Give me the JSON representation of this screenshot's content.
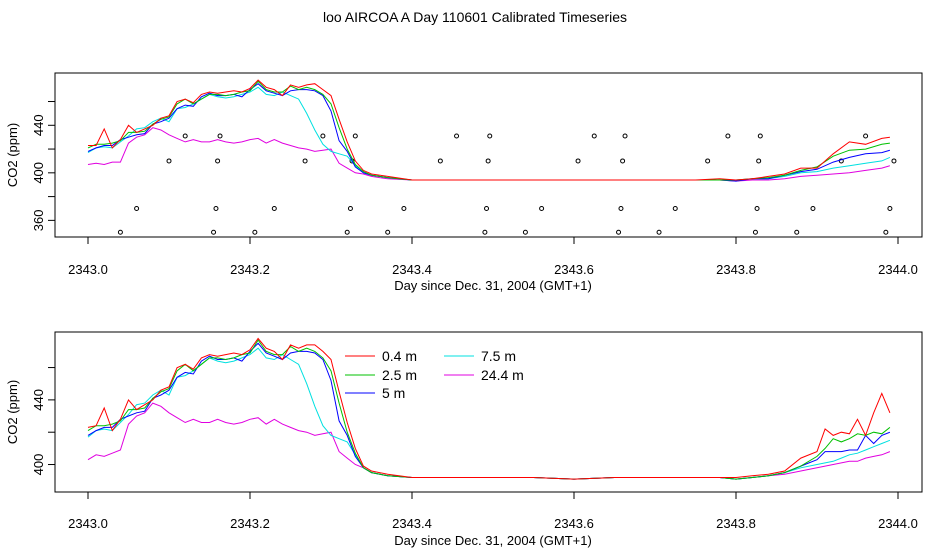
{
  "title": "loo AIRCOA A  Day 110601  Calibrated Timeseries",
  "colors": {
    "0.4 m": "#ff0000",
    "2.5 m": "#00c000",
    "5 m": "#0000ff",
    "7.5 m": "#00e0e0",
    "24.4 m": "#e000e0",
    "axis": "#000000",
    "background": "#ffffff"
  },
  "chart_data": [
    {
      "type": "line",
      "xlabel": "Day since Dec. 31, 2004 (GMT+1)",
      "ylabel": "CO2 (ppm)",
      "xlim": [
        2343.0,
        2344.0
      ],
      "ylim": [
        346,
        484
      ],
      "xticks": [
        "2343.0",
        "2343.2",
        "2343.4",
        "2343.6",
        "2343.8",
        "2344.0"
      ],
      "yticks": [
        "360",
        "400",
        "440"
      ],
      "x": [
        2343.0,
        2343.01,
        2343.02,
        2343.03,
        2343.04,
        2343.05,
        2343.06,
        2343.07,
        2343.08,
        2343.09,
        2343.1,
        2343.11,
        2343.12,
        2343.13,
        2343.14,
        2343.15,
        2343.16,
        2343.17,
        2343.18,
        2343.19,
        2343.2,
        2343.21,
        2343.22,
        2343.23,
        2343.24,
        2343.25,
        2343.26,
        2343.27,
        2343.28,
        2343.29,
        2343.3,
        2343.31,
        2343.32,
        2343.33,
        2343.34,
        2343.35,
        2343.37,
        2343.4,
        2343.45,
        2343.5,
        2343.55,
        2343.6,
        2343.65,
        2343.7,
        2343.75,
        2343.78,
        2343.8,
        2343.82,
        2343.84,
        2343.86,
        2343.88,
        2343.9,
        2343.92,
        2343.94,
        2343.96,
        2343.98,
        2343.99
      ],
      "series": [
        {
          "name": "0.4 m",
          "values": [
            423,
            423,
            437,
            421,
            428,
            440,
            434,
            437,
            440,
            446,
            448,
            460,
            462,
            459,
            466,
            468,
            467,
            468,
            469,
            468,
            471,
            478,
            472,
            470,
            465,
            474,
            472,
            474,
            475,
            470,
            465,
            445,
            426,
            410,
            402,
            399,
            397,
            394,
            394,
            394,
            394,
            394,
            394,
            394,
            394,
            395,
            394,
            395,
            397,
            399,
            404,
            404,
            416,
            426,
            424,
            429,
            430
          ]
        },
        {
          "name": "2.5 m",
          "values": [
            421,
            424,
            424,
            425,
            427,
            434,
            434,
            435,
            441,
            445,
            447,
            458,
            462,
            458,
            462,
            466,
            466,
            465,
            466,
            468,
            469,
            477,
            470,
            468,
            468,
            473,
            470,
            472,
            470,
            466,
            458,
            438,
            420,
            407,
            401,
            398,
            396,
            394,
            394,
            394,
            394,
            394,
            394,
            394,
            394,
            394,
            394,
            395,
            396,
            398,
            402,
            405,
            414,
            419,
            420,
            424,
            425
          ]
        },
        {
          "name": "5 m",
          "values": [
            418,
            421,
            423,
            423,
            428,
            430,
            432,
            433,
            441,
            443,
            446,
            454,
            457,
            456,
            464,
            467,
            465,
            465,
            466,
            464,
            470,
            475,
            469,
            467,
            465,
            469,
            470,
            470,
            469,
            465,
            452,
            427,
            418,
            405,
            400,
            398,
            396,
            394,
            394,
            394,
            394,
            394,
            394,
            394,
            394,
            394,
            393,
            395,
            395,
            398,
            401,
            403,
            409,
            413,
            416,
            417,
            419
          ]
        },
        {
          "name": "7.5 m",
          "values": [
            417,
            421,
            422,
            421,
            426,
            431,
            437,
            438,
            443,
            446,
            443,
            454,
            455,
            458,
            462,
            466,
            464,
            463,
            464,
            466,
            468,
            472,
            466,
            465,
            468,
            465,
            462,
            450,
            436,
            424,
            418,
            416,
            414,
            406,
            400,
            398,
            396,
            394,
            394,
            394,
            394,
            394,
            394,
            394,
            394,
            394,
            394,
            395,
            395,
            397,
            400,
            401,
            404,
            406,
            408,
            410,
            413
          ]
        },
        {
          "name": "24.4 m",
          "values": [
            407,
            408,
            407,
            409,
            409,
            425,
            430,
            432,
            438,
            436,
            432,
            429,
            426,
            428,
            426,
            426,
            428,
            426,
            425,
            426,
            428,
            429,
            425,
            428,
            425,
            423,
            421,
            420,
            418,
            419,
            420,
            408,
            404,
            400,
            399,
            397,
            395,
            394,
            394,
            394,
            394,
            394,
            394,
            394,
            394,
            394,
            393,
            394,
            394,
            395,
            397,
            398,
            399,
            400,
            402,
            404,
            406
          ]
        }
      ],
      "flags": {
        "x": [
          2343.04,
          2343.06,
          2343.1,
          2343.12,
          2343.155,
          2343.158,
          2343.16,
          2343.163,
          2343.206,
          2343.23,
          2343.268,
          2343.29,
          2343.32,
          2343.324,
          2343.326,
          2343.33,
          2343.37,
          2343.39,
          2343.435,
          2343.455,
          2343.49,
          2343.492,
          2343.494,
          2343.496,
          2343.54,
          2343.56,
          2343.605,
          2343.625,
          2343.655,
          2343.658,
          2343.66,
          2343.663,
          2343.705,
          2343.725,
          2343.765,
          2343.79,
          2343.824,
          2343.826,
          2343.828,
          2343.83,
          2343.875,
          2343.895,
          2343.93,
          2343.96,
          2343.985,
          2343.99,
          2343.995
        ],
        "y": [
          350,
          370,
          410,
          431,
          350,
          370,
          410,
          431,
          350,
          370,
          410,
          431,
          350,
          370,
          410,
          431,
          350,
          370,
          410,
          431,
          350,
          370,
          410,
          431,
          350,
          370,
          410,
          431,
          350,
          370,
          410,
          431,
          350,
          370,
          410,
          431,
          350,
          370,
          410,
          431,
          350,
          370,
          410,
          431,
          350,
          370,
          410
        ]
      }
    },
    {
      "type": "line",
      "xlabel": "Day since Dec. 31, 2004 (GMT+1)",
      "ylabel": "CO2 (ppm)",
      "xlim": [
        2343.0,
        2344.0
      ],
      "ylim": [
        383,
        482
      ],
      "xticks": [
        "2343.0",
        "2343.2",
        "2343.4",
        "2343.6",
        "2343.8",
        "2344.0"
      ],
      "yticks": [
        "400",
        "440"
      ],
      "legend": "top-center",
      "x": [
        2343.0,
        2343.01,
        2343.02,
        2343.03,
        2343.04,
        2343.05,
        2343.06,
        2343.07,
        2343.08,
        2343.09,
        2343.1,
        2343.11,
        2343.12,
        2343.13,
        2343.14,
        2343.15,
        2343.16,
        2343.17,
        2343.18,
        2343.19,
        2343.2,
        2343.21,
        2343.22,
        2343.23,
        2343.24,
        2343.25,
        2343.26,
        2343.27,
        2343.28,
        2343.29,
        2343.3,
        2343.31,
        2343.32,
        2343.33,
        2343.34,
        2343.35,
        2343.37,
        2343.4,
        2343.45,
        2343.5,
        2343.55,
        2343.6,
        2343.65,
        2343.7,
        2343.75,
        2343.78,
        2343.8,
        2343.82,
        2343.84,
        2343.86,
        2343.88,
        2343.9,
        2343.91,
        2343.92,
        2343.93,
        2343.94,
        2343.95,
        2343.96,
        2343.97,
        2343.98,
        2343.99
      ],
      "series": [
        {
          "name": "0.4 m",
          "values": [
            423,
            424,
            435,
            421,
            428,
            440,
            434,
            437,
            440,
            446,
            448,
            460,
            462,
            459,
            466,
            468,
            467,
            468,
            469,
            468,
            471,
            478,
            472,
            470,
            465,
            474,
            472,
            474,
            474,
            470,
            465,
            445,
            426,
            410,
            399,
            396,
            394,
            392,
            392,
            392,
            392,
            391,
            392,
            392,
            392,
            392,
            392,
            393,
            394,
            396,
            404,
            408,
            422,
            418,
            420,
            419,
            428,
            418,
            432,
            444,
            432
          ]
        },
        {
          "name": "2.5 m",
          "values": [
            421,
            424,
            424,
            425,
            427,
            434,
            434,
            435,
            441,
            445,
            447,
            458,
            462,
            458,
            462,
            466,
            466,
            465,
            466,
            468,
            469,
            477,
            470,
            468,
            468,
            473,
            470,
            472,
            470,
            466,
            458,
            438,
            420,
            407,
            398,
            395,
            393,
            392,
            392,
            392,
            392,
            391,
            392,
            392,
            392,
            392,
            391,
            392,
            393,
            395,
            399,
            405,
            410,
            416,
            414,
            416,
            419,
            418,
            420,
            419,
            423
          ]
        },
        {
          "name": "5 m",
          "values": [
            418,
            421,
            423,
            423,
            428,
            430,
            432,
            433,
            441,
            443,
            446,
            454,
            457,
            456,
            464,
            467,
            465,
            465,
            466,
            464,
            470,
            475,
            469,
            467,
            465,
            469,
            470,
            470,
            469,
            465,
            452,
            427,
            418,
            405,
            398,
            395,
            393,
            392,
            392,
            392,
            392,
            391,
            392,
            392,
            392,
            392,
            391,
            392,
            393,
            395,
            399,
            403,
            408,
            408,
            408,
            409,
            409,
            418,
            413,
            418,
            420
          ]
        },
        {
          "name": "7.5 m",
          "values": [
            417,
            421,
            422,
            421,
            426,
            431,
            437,
            438,
            443,
            446,
            443,
            454,
            455,
            458,
            462,
            466,
            464,
            463,
            464,
            466,
            468,
            472,
            466,
            465,
            468,
            465,
            462,
            450,
            436,
            424,
            418,
            416,
            414,
            406,
            398,
            395,
            393,
            392,
            392,
            392,
            392,
            391,
            392,
            392,
            392,
            392,
            391,
            392,
            393,
            395,
            398,
            400,
            401,
            402,
            404,
            406,
            407,
            409,
            411,
            413,
            415
          ]
        },
        {
          "name": "24.4 m",
          "values": [
            403,
            406,
            405,
            407,
            409,
            425,
            430,
            432,
            438,
            436,
            432,
            429,
            426,
            428,
            426,
            426,
            428,
            426,
            425,
            426,
            428,
            429,
            425,
            428,
            425,
            423,
            421,
            420,
            418,
            419,
            420,
            408,
            404,
            400,
            398,
            395,
            393,
            392,
            392,
            392,
            392,
            391,
            392,
            392,
            392,
            392,
            391,
            392,
            393,
            394,
            396,
            398,
            399,
            400,
            401,
            402,
            402,
            404,
            405,
            406,
            408
          ]
        }
      ]
    }
  ]
}
